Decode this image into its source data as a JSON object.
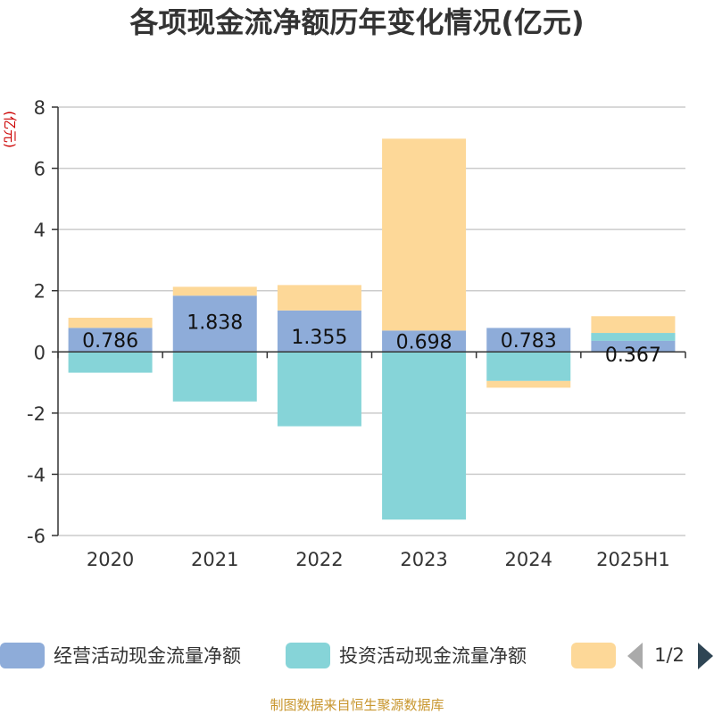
{
  "chart_data": {
    "type": "bar",
    "stacked": true,
    "title": "各项现金流净额历年变化情况(亿元)",
    "ylabel": "(亿元)",
    "xlabel": "",
    "categories": [
      "2020",
      "2021",
      "2022",
      "2023",
      "2024",
      "2025H1"
    ],
    "ylim": [
      -6,
      8
    ],
    "yticks": [
      8,
      6,
      4,
      2,
      0,
      -2,
      -4,
      -6
    ],
    "grid": true,
    "legend_position": "bottom",
    "series": [
      {
        "name": "经营活动现金流量净额",
        "color": "#8eacd9",
        "values": [
          0.786,
          1.838,
          1.355,
          0.698,
          0.783,
          0.367
        ],
        "labels": [
          "0.786",
          "1.838",
          "1.355",
          "0.698",
          "0.783",
          "0.367"
        ]
      },
      {
        "name": "投资活动现金流量净额",
        "color": "#86d4d8",
        "values": [
          -0.68,
          -1.62,
          -2.43,
          -5.48,
          -0.95,
          0.25
        ]
      },
      {
        "name": "",
        "color": "#fdd898",
        "values": [
          0.33,
          0.29,
          0.83,
          6.27,
          -0.22,
          0.55
        ]
      }
    ]
  },
  "legend": {
    "page_indicator": "1/2"
  },
  "footer": {
    "source": "制图数据来自恒生聚源数据库"
  }
}
